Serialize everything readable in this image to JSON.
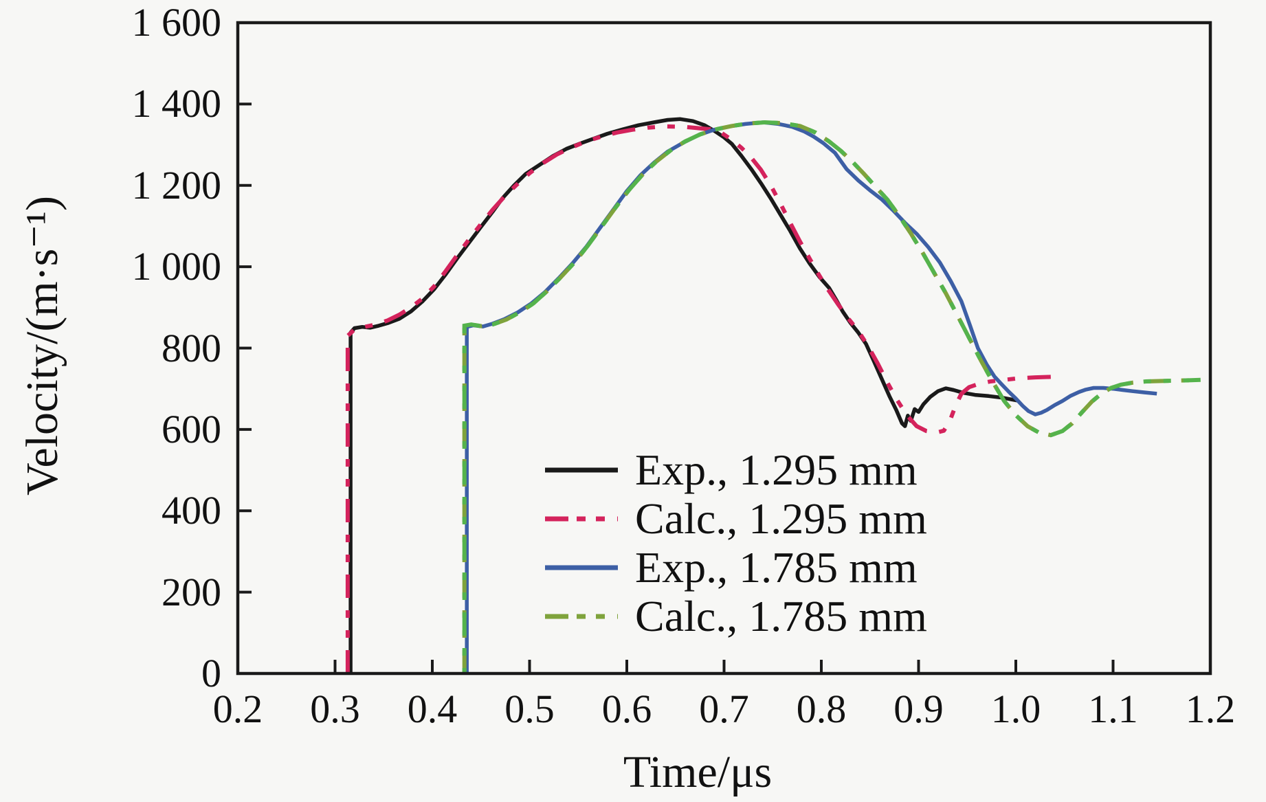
{
  "figure": {
    "background": "#f7f7f5",
    "axis_color": "#1a1a1a"
  },
  "chart_data": {
    "type": "line",
    "title": "",
    "xlabel": "Time/μs",
    "ylabel": "Velocity/(m·s⁻¹)",
    "xlim": [
      0.2,
      1.2
    ],
    "ylim": [
      0,
      1600
    ],
    "grid": false,
    "legend_position": "inside-lower-middle",
    "x_ticks": {
      "values": [
        0.2,
        0.3,
        0.4,
        0.5,
        0.6,
        0.7,
        0.8,
        0.9,
        1.0,
        1.1,
        1.2
      ],
      "labels": [
        "0.2",
        "0.3",
        "0.4",
        "0.5",
        "0.6",
        "0.7",
        "0.8",
        "0.9",
        "1.0",
        "1.1",
        "1.2"
      ]
    },
    "y_ticks": {
      "values": [
        0,
        200,
        400,
        600,
        800,
        1000,
        1200,
        1400,
        1600
      ],
      "labels": [
        "0",
        "200",
        "400",
        "600",
        "800",
        "1 000",
        "1 200",
        "1 400",
        "1 600"
      ]
    },
    "series": [
      {
        "name": "Exp., 1.295 mm",
        "color": "#1a1a1a",
        "line": "solid",
        "points": [
          [
            0.316,
            0
          ],
          [
            0.316,
            838
          ],
          [
            0.32,
            849
          ],
          [
            0.328,
            852
          ],
          [
            0.336,
            850
          ],
          [
            0.345,
            855
          ],
          [
            0.355,
            862
          ],
          [
            0.366,
            872
          ],
          [
            0.378,
            890
          ],
          [
            0.39,
            915
          ],
          [
            0.402,
            945
          ],
          [
            0.414,
            982
          ],
          [
            0.426,
            1022
          ],
          [
            0.438,
            1060
          ],
          [
            0.45,
            1098
          ],
          [
            0.462,
            1135
          ],
          [
            0.472,
            1168
          ],
          [
            0.484,
            1200
          ],
          [
            0.496,
            1228
          ],
          [
            0.51,
            1250
          ],
          [
            0.524,
            1272
          ],
          [
            0.538,
            1290
          ],
          [
            0.552,
            1303
          ],
          [
            0.566,
            1315
          ],
          [
            0.58,
            1327
          ],
          [
            0.596,
            1338
          ],
          [
            0.612,
            1348
          ],
          [
            0.628,
            1355
          ],
          [
            0.642,
            1361
          ],
          [
            0.655,
            1363
          ],
          [
            0.668,
            1358
          ],
          [
            0.68,
            1348
          ],
          [
            0.69,
            1334
          ],
          [
            0.7,
            1318
          ],
          [
            0.708,
            1302
          ],
          [
            0.718,
            1272
          ],
          [
            0.728,
            1240
          ],
          [
            0.738,
            1205
          ],
          [
            0.748,
            1168
          ],
          [
            0.758,
            1128
          ],
          [
            0.768,
            1088
          ],
          [
            0.778,
            1045
          ],
          [
            0.788,
            1008
          ],
          [
            0.798,
            975
          ],
          [
            0.808,
            948
          ],
          [
            0.815,
            920
          ],
          [
            0.822,
            890
          ],
          [
            0.83,
            862
          ],
          [
            0.838,
            838
          ],
          [
            0.846,
            810
          ],
          [
            0.854,
            768
          ],
          [
            0.862,
            725
          ],
          [
            0.87,
            682
          ],
          [
            0.877,
            648
          ],
          [
            0.883,
            615
          ],
          [
            0.886,
            608
          ],
          [
            0.889,
            634
          ],
          [
            0.892,
            621
          ],
          [
            0.896,
            650
          ],
          [
            0.9,
            643
          ],
          [
            0.905,
            662
          ],
          [
            0.912,
            680
          ],
          [
            0.92,
            694
          ],
          [
            0.928,
            701
          ],
          [
            0.936,
            697
          ],
          [
            0.946,
            690
          ],
          [
            0.958,
            685
          ],
          [
            0.972,
            682
          ],
          [
            0.986,
            678
          ],
          [
            1.002,
            671
          ]
        ]
      },
      {
        "name": "Calc., 1.295 mm",
        "color": "#d4235c",
        "line": "dash-dot",
        "points": [
          [
            0.313,
            0
          ],
          [
            0.313,
            830
          ],
          [
            0.32,
            846
          ],
          [
            0.33,
            852
          ],
          [
            0.342,
            858
          ],
          [
            0.354,
            868
          ],
          [
            0.366,
            882
          ],
          [
            0.378,
            900
          ],
          [
            0.39,
            922
          ],
          [
            0.402,
            952
          ],
          [
            0.414,
            990
          ],
          [
            0.426,
            1030
          ],
          [
            0.438,
            1068
          ],
          [
            0.45,
            1105
          ],
          [
            0.462,
            1140
          ],
          [
            0.474,
            1172
          ],
          [
            0.486,
            1200
          ],
          [
            0.5,
            1230
          ],
          [
            0.514,
            1255
          ],
          [
            0.528,
            1276
          ],
          [
            0.542,
            1292
          ],
          [
            0.558,
            1308
          ],
          [
            0.574,
            1320
          ],
          [
            0.59,
            1330
          ],
          [
            0.606,
            1337
          ],
          [
            0.622,
            1342
          ],
          [
            0.64,
            1345
          ],
          [
            0.658,
            1344
          ],
          [
            0.672,
            1341
          ],
          [
            0.686,
            1338
          ],
          [
            0.698,
            1328
          ],
          [
            0.708,
            1312
          ],
          [
            0.718,
            1292
          ],
          [
            0.728,
            1268
          ],
          [
            0.738,
            1238
          ],
          [
            0.748,
            1200
          ],
          [
            0.758,
            1155
          ],
          [
            0.768,
            1108
          ],
          [
            0.778,
            1062
          ],
          [
            0.788,
            1020
          ],
          [
            0.798,
            978
          ],
          [
            0.808,
            940
          ],
          [
            0.818,
            905
          ],
          [
            0.828,
            872
          ],
          [
            0.838,
            842
          ],
          [
            0.848,
            805
          ],
          [
            0.858,
            762
          ],
          [
            0.868,
            715
          ],
          [
            0.878,
            672
          ],
          [
            0.888,
            635
          ],
          [
            0.898,
            608
          ],
          [
            0.908,
            596
          ],
          [
            0.918,
            592
          ],
          [
            0.926,
            597
          ],
          [
            0.932,
            620
          ],
          [
            0.938,
            658
          ],
          [
            0.944,
            688
          ],
          [
            0.952,
            704
          ],
          [
            0.962,
            712
          ],
          [
            0.974,
            718
          ],
          [
            0.988,
            722
          ],
          [
            1.004,
            726
          ],
          [
            1.02,
            728
          ],
          [
            1.034,
            729
          ],
          [
            1.046,
            730
          ]
        ]
      },
      {
        "name": "Exp., 1.785 mm",
        "color": "#3d5fa5",
        "line": "solid",
        "points": [
          [
            0.4355,
            0
          ],
          [
            0.4355,
            852
          ],
          [
            0.442,
            856
          ],
          [
            0.452,
            853
          ],
          [
            0.462,
            860
          ],
          [
            0.474,
            871
          ],
          [
            0.488,
            888
          ],
          [
            0.502,
            910
          ],
          [
            0.516,
            938
          ],
          [
            0.53,
            972
          ],
          [
            0.544,
            1008
          ],
          [
            0.558,
            1048
          ],
          [
            0.572,
            1094
          ],
          [
            0.586,
            1140
          ],
          [
            0.6,
            1186
          ],
          [
            0.614,
            1225
          ],
          [
            0.628,
            1256
          ],
          [
            0.642,
            1283
          ],
          [
            0.658,
            1305
          ],
          [
            0.674,
            1324
          ],
          [
            0.69,
            1337
          ],
          [
            0.706,
            1345
          ],
          [
            0.722,
            1351
          ],
          [
            0.74,
            1355
          ],
          [
            0.756,
            1351
          ],
          [
            0.77,
            1344
          ],
          [
            0.782,
            1333
          ],
          [
            0.792,
            1320
          ],
          [
            0.802,
            1304
          ],
          [
            0.814,
            1280
          ],
          [
            0.826,
            1240
          ],
          [
            0.838,
            1212
          ],
          [
            0.85,
            1188
          ],
          [
            0.862,
            1166
          ],
          [
            0.874,
            1138
          ],
          [
            0.886,
            1108
          ],
          [
            0.898,
            1081
          ],
          [
            0.91,
            1048
          ],
          [
            0.922,
            1010
          ],
          [
            0.933,
            965
          ],
          [
            0.944,
            915
          ],
          [
            0.953,
            855
          ],
          [
            0.961,
            800
          ],
          [
            0.97,
            760
          ],
          [
            0.978,
            730
          ],
          [
            0.985,
            712
          ],
          [
            0.993,
            692
          ],
          [
            1.0,
            676
          ],
          [
            1.007,
            658
          ],
          [
            1.013,
            645
          ],
          [
            1.02,
            637
          ],
          [
            1.026,
            641
          ],
          [
            1.032,
            648
          ],
          [
            1.04,
            660
          ],
          [
            1.048,
            670
          ],
          [
            1.056,
            682
          ],
          [
            1.065,
            692
          ],
          [
            1.072,
            698
          ],
          [
            1.08,
            702
          ],
          [
            1.09,
            702
          ],
          [
            1.1,
            700
          ],
          [
            1.11,
            697
          ],
          [
            1.12,
            694
          ],
          [
            1.132,
            691
          ],
          [
            1.145,
            688
          ]
        ]
      },
      {
        "name": "Calc., 1.785 mm",
        "color": "#7fa33c",
        "color2": "#55b34c",
        "line": "dash-dot",
        "points": [
          [
            0.433,
            0
          ],
          [
            0.433,
            855
          ],
          [
            0.44,
            858
          ],
          [
            0.45,
            854
          ],
          [
            0.462,
            858
          ],
          [
            0.476,
            870
          ],
          [
            0.49,
            888
          ],
          [
            0.504,
            910
          ],
          [
            0.518,
            940
          ],
          [
            0.532,
            974
          ],
          [
            0.546,
            1010
          ],
          [
            0.56,
            1052
          ],
          [
            0.574,
            1098
          ],
          [
            0.588,
            1144
          ],
          [
            0.602,
            1188
          ],
          [
            0.616,
            1226
          ],
          [
            0.63,
            1258
          ],
          [
            0.645,
            1286
          ],
          [
            0.66,
            1308
          ],
          [
            0.676,
            1326
          ],
          [
            0.692,
            1338
          ],
          [
            0.708,
            1346
          ],
          [
            0.724,
            1352
          ],
          [
            0.742,
            1355
          ],
          [
            0.76,
            1353
          ],
          [
            0.778,
            1346
          ],
          [
            0.794,
            1330
          ],
          [
            0.808,
            1308
          ],
          [
            0.82,
            1285
          ],
          [
            0.832,
            1258
          ],
          [
            0.844,
            1228
          ],
          [
            0.856,
            1196
          ],
          [
            0.868,
            1165
          ],
          [
            0.88,
            1125
          ],
          [
            0.892,
            1082
          ],
          [
            0.904,
            1035
          ],
          [
            0.916,
            985
          ],
          [
            0.928,
            935
          ],
          [
            0.94,
            880
          ],
          [
            0.952,
            825
          ],
          [
            0.964,
            770
          ],
          [
            0.976,
            718
          ],
          [
            0.988,
            670
          ],
          [
            1.0,
            635
          ],
          [
            1.012,
            608
          ],
          [
            1.024,
            592
          ],
          [
            1.036,
            586
          ],
          [
            1.048,
            596
          ],
          [
            1.058,
            615
          ],
          [
            1.068,
            642
          ],
          [
            1.078,
            668
          ],
          [
            1.088,
            688
          ],
          [
            1.098,
            702
          ],
          [
            1.108,
            710
          ],
          [
            1.12,
            715
          ],
          [
            1.134,
            718
          ],
          [
            1.15,
            719
          ],
          [
            1.166,
            720
          ],
          [
            1.18,
            721
          ],
          [
            1.19,
            722
          ]
        ]
      }
    ]
  }
}
